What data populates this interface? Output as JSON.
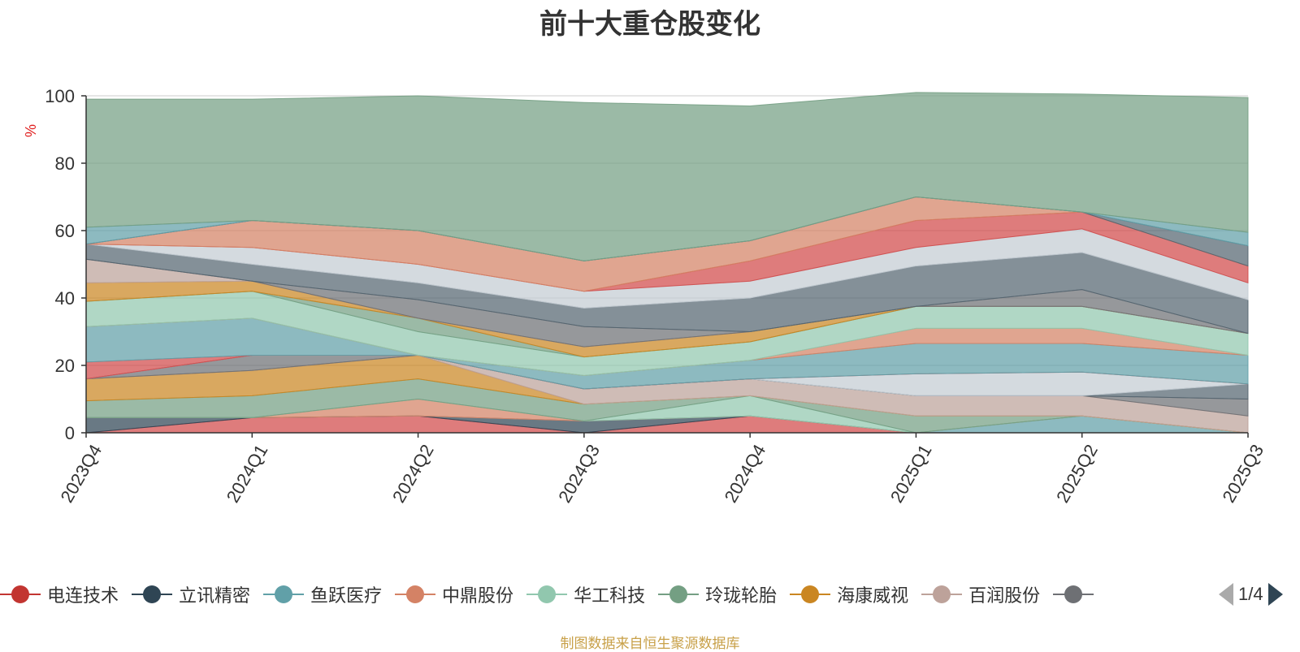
{
  "title": "前十大重仓股变化",
  "source_note": "制图数据来自恒生聚源数据库",
  "pager": "1/4",
  "chart_data": {
    "type": "area",
    "stacked": true,
    "title": "前十大重仓股变化",
    "ylabel": "%",
    "ylim": [
      0,
      100
    ],
    "yticks": [
      0,
      20,
      40,
      60,
      80,
      100
    ],
    "grid": true,
    "legend_position": "bottom",
    "categories": [
      "2023Q4",
      "2024Q1",
      "2024Q2",
      "2024Q3",
      "2024Q4",
      "2025Q1",
      "2025Q2",
      "2025Q3"
    ],
    "series": [
      {
        "color": "#d14a4a",
        "values": [
          0,
          4.5,
          5,
          0,
          5,
          0,
          0,
          0
        ]
      },
      {
        "color": "#2f4554",
        "values": [
          4.5,
          0,
          0,
          3.5,
          0,
          0,
          0,
          0
        ]
      },
      {
        "color": "#61a0a8",
        "values": [
          0,
          0,
          0,
          0,
          0,
          0,
          5,
          0
        ]
      },
      {
        "color": "#d48265",
        "values": [
          0,
          0,
          5,
          0,
          0,
          0,
          0,
          0
        ]
      },
      {
        "color": "#91c7ae",
        "values": [
          0,
          0,
          0,
          0,
          6,
          0,
          0,
          0
        ]
      },
      {
        "color": "#749f83",
        "values": [
          5,
          6.5,
          6,
          5,
          0,
          5,
          0,
          0
        ]
      },
      {
        "color": "#ca8622",
        "values": [
          6.5,
          7.5,
          7,
          0,
          0,
          0,
          0,
          0
        ]
      },
      {
        "color": "#bda29a",
        "values": [
          0,
          0,
          0,
          4.5,
          5,
          6,
          6,
          5
        ]
      },
      {
        "color": "#6e7074",
        "values": [
          0,
          4.5,
          0,
          0,
          0,
          0,
          0,
          5
        ]
      },
      {
        "color": "#546570",
        "values": [
          0,
          0,
          0,
          0,
          0,
          0,
          0,
          4.5
        ]
      },
      {
        "color": "#c4ccd3",
        "values": [
          0,
          0,
          0,
          0,
          0,
          6.5,
          7,
          0
        ]
      },
      {
        "color": "#d14a4a",
        "values": [
          5,
          0,
          0,
          0,
          0,
          0,
          0,
          0
        ]
      },
      {
        "color": "#61a0a8",
        "values": [
          10.5,
          11,
          0,
          4,
          5.5,
          9,
          8.5,
          8.5
        ]
      },
      {
        "color": "#d48265",
        "values": [
          0,
          0,
          0,
          0,
          0,
          4.5,
          4.5,
          0
        ]
      },
      {
        "color": "#91c7ae",
        "values": [
          7.5,
          8,
          7,
          5.5,
          5.5,
          6.5,
          6.5,
          6.5
        ]
      },
      {
        "color": "#749f83",
        "values": [
          0,
          0,
          4,
          0,
          0,
          0,
          0,
          0
        ]
      },
      {
        "color": "#ca8622",
        "values": [
          5.5,
          3,
          0,
          3,
          3,
          0,
          0,
          0
        ]
      },
      {
        "color": "#bda29a",
        "values": [
          7,
          0,
          0,
          0,
          0,
          0,
          0,
          0
        ]
      },
      {
        "color": "#6e7074",
        "values": [
          0,
          0,
          5.5,
          6,
          0,
          0,
          5,
          0
        ]
      },
      {
        "color": "#546570",
        "values": [
          4.5,
          5,
          5,
          5.5,
          10,
          12,
          11,
          10
        ]
      },
      {
        "color": "#c4ccd3",
        "values": [
          0,
          5,
          5.5,
          5,
          5,
          5.5,
          7,
          5
        ]
      },
      {
        "color": "#d14a4a",
        "values": [
          0,
          0,
          0,
          0,
          6,
          8,
          5,
          5
        ]
      },
      {
        "color": "#d48265",
        "values": [
          0,
          8,
          10,
          9,
          6,
          7,
          0,
          0
        ]
      },
      {
        "color": "#546570",
        "values": [
          0,
          0,
          0,
          0,
          0,
          0,
          0,
          6
        ]
      },
      {
        "color": "#61a0a8",
        "values": [
          5,
          0,
          0,
          0,
          0,
          0,
          0,
          4
        ]
      },
      {
        "color": "#749f83",
        "values": [
          38,
          36,
          40,
          47,
          40,
          31,
          35,
          40
        ]
      }
    ]
  },
  "legend": [
    {
      "label": "电连技术",
      "color": "#c23531"
    },
    {
      "label": "立讯精密",
      "color": "#2f4554"
    },
    {
      "label": "鱼跃医疗",
      "color": "#61a0a8"
    },
    {
      "label": "中鼎股份",
      "color": "#d48265"
    },
    {
      "label": "华工科技",
      "color": "#91c7ae"
    },
    {
      "label": "玲珑轮胎",
      "color": "#749f83"
    },
    {
      "label": "海康威视",
      "color": "#ca8622"
    },
    {
      "label": "百润股份",
      "color": "#bda29a"
    },
    {
      "label": "",
      "color": "#6e7074"
    }
  ]
}
